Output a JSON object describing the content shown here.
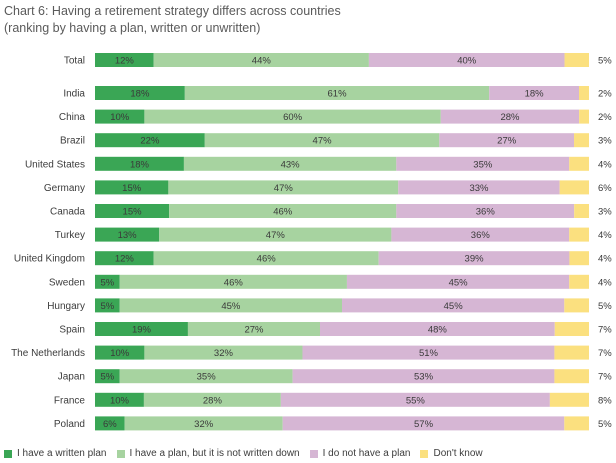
{
  "title_line1": "Chart 6: Having a retirement strategy differs across countries",
  "title_line2": "(ranking by having a plan, written or unwritten)",
  "colors": {
    "written": "#3aa655",
    "unwritten": "#a7d3a0",
    "no_plan": "#d6b6d4",
    "dont_know": "#fbe07f"
  },
  "legend": [
    {
      "key": "written",
      "label": "I have a written plan"
    },
    {
      "key": "unwritten",
      "label": "I have a plan, but it is not written down"
    },
    {
      "key": "no_plan",
      "label": "I do not have a plan"
    },
    {
      "key": "dont_know",
      "label": "Don't know"
    }
  ],
  "chart_data": {
    "type": "bar",
    "orientation": "horizontal",
    "stacked": true,
    "normalized": true,
    "title": "Chart 6: Having a retirement strategy differs across countries (ranking by having a plan, written or unwritten)",
    "categories": [
      "Total",
      "India",
      "China",
      "Brazil",
      "United States",
      "Germany",
      "Canada",
      "Turkey",
      "United Kingdom",
      "Sweden",
      "Hungary",
      "Spain",
      "The Netherlands",
      "Japan",
      "France",
      "Poland"
    ],
    "series": [
      {
        "name": "I have a written plan",
        "values": [
          12,
          18,
          10,
          22,
          18,
          15,
          15,
          13,
          12,
          5,
          5,
          19,
          10,
          5,
          10,
          6
        ]
      },
      {
        "name": "I have a plan, but it is not written down",
        "values": [
          44,
          61,
          60,
          47,
          43,
          47,
          46,
          47,
          46,
          46,
          45,
          27,
          32,
          35,
          28,
          32
        ]
      },
      {
        "name": "I do not have a plan",
        "values": [
          40,
          18,
          28,
          27,
          35,
          33,
          36,
          36,
          39,
          45,
          45,
          48,
          51,
          53,
          55,
          57
        ]
      },
      {
        "name": "Don't know",
        "values": [
          5,
          2,
          2,
          3,
          4,
          6,
          3,
          4,
          4,
          4,
          5,
          7,
          7,
          7,
          8,
          5
        ]
      }
    ],
    "value_suffix": "%",
    "legend_position": "bottom"
  }
}
